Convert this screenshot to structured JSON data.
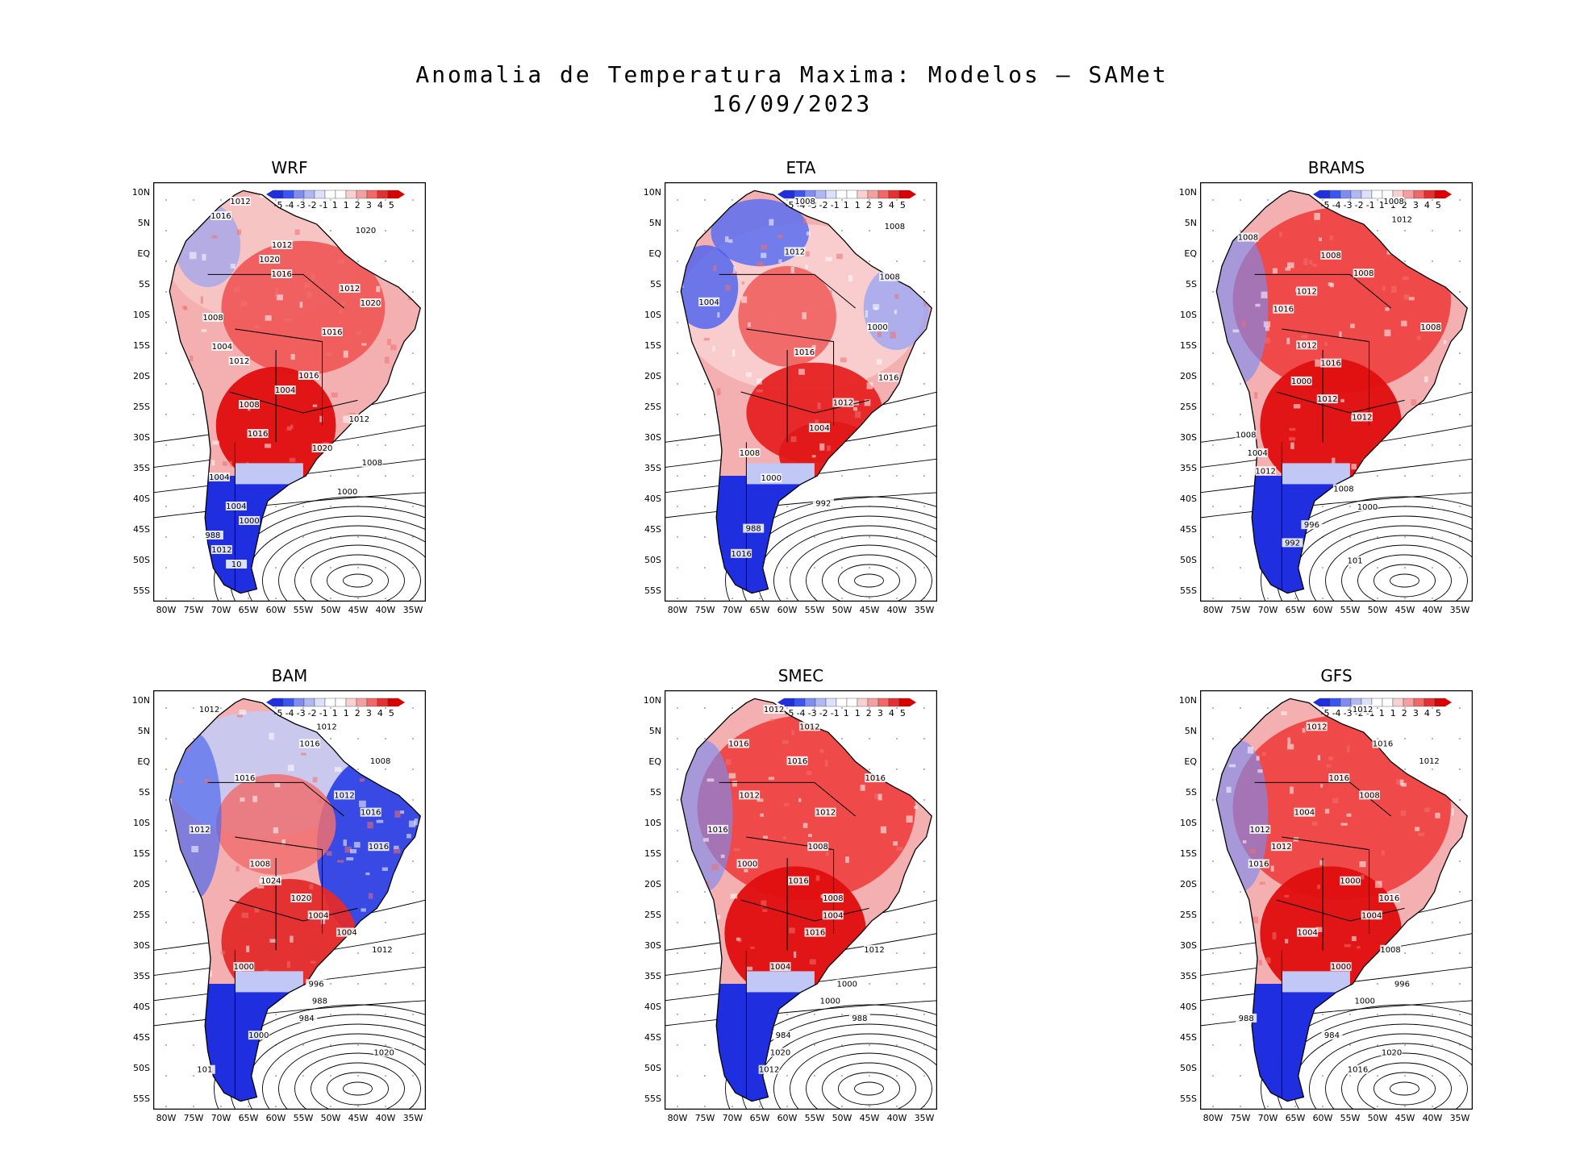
{
  "title_line1": "Anomalia de Temperatura Maxima: Modelos — SAMet",
  "title_line2": "16/09/2023",
  "colorbar": {
    "labels": [
      "-5",
      "-4",
      "-3",
      "-2",
      "-1",
      "1",
      "1",
      "2",
      "3",
      "4",
      "5"
    ],
    "colors": [
      "#1f2fe0",
      "#3a55f0",
      "#7f8cf0",
      "#b0b8f4",
      "#dde0fa",
      "#ffffff",
      "#ffffff",
      "#f9d0d0",
      "#f5a0a0",
      "#f06868",
      "#e43030",
      "#d80000"
    ]
  },
  "lat_ticks": [
    "10N",
    "5N",
    "EQ",
    "5S",
    "10S",
    "15S",
    "20S",
    "25S",
    "30S",
    "35S",
    "40S",
    "45S",
    "50S",
    "55S"
  ],
  "lon_ticks": [
    "80W",
    "75W",
    "70W",
    "65W",
    "60W",
    "55W",
    "50W",
    "45W",
    "40W",
    "35W"
  ],
  "panels": [
    {
      "name": "WRF",
      "labels": [
        "1012",
        "1016",
        "1020",
        "1012",
        "1020",
        "1016",
        "1012",
        "1020",
        "1008",
        "1016",
        "1004",
        "1012",
        "1016",
        "1004",
        "1008",
        "1012",
        "1016",
        "1020",
        "1008",
        "1004",
        "1000",
        "1004",
        "1000",
        "988",
        "1012",
        "10"
      ],
      "style": "mixed-red"
    },
    {
      "name": "ETA",
      "labels": [
        "1008",
        "1008",
        "1012",
        "1008",
        "1004",
        "1000",
        "1016",
        "1016",
        "1012",
        "1004",
        "1008",
        "1000",
        "992",
        "988",
        "1016"
      ],
      "style": "eta"
    },
    {
      "name": "BRAMS",
      "labels": [
        "1008",
        "1012",
        "1008",
        "1008",
        "1008",
        "1012",
        "1016",
        "1008",
        "1012",
        "1016",
        "1000",
        "1012",
        "1012",
        "1008",
        "1004",
        "1012",
        "1008",
        "1000",
        "996",
        "992",
        "101"
      ],
      "style": "strong-red"
    },
    {
      "name": "BAM",
      "labels": [
        "1012",
        "1012",
        "1016",
        "1008",
        "1016",
        "1012",
        "1016",
        "1012",
        "1016",
        "1008",
        "1024",
        "1020",
        "1004",
        "1004",
        "1012",
        "1000",
        "996",
        "988",
        "984",
        "1000",
        "1020",
        "101"
      ],
      "style": "bam"
    },
    {
      "name": "SMEC",
      "labels": [
        "1012",
        "1012",
        "1016",
        "1016",
        "1016",
        "1012",
        "1012",
        "1016",
        "1008",
        "1000",
        "1016",
        "1008",
        "1004",
        "1016",
        "1012",
        "1004",
        "1000",
        "1000",
        "988",
        "984",
        "1020",
        "1012"
      ],
      "style": "strong-red"
    },
    {
      "name": "GFS",
      "labels": [
        "1012",
        "1012",
        "1016",
        "1012",
        "1016",
        "1008",
        "1004",
        "1012",
        "1012",
        "1016",
        "1000",
        "1016",
        "1004",
        "1004",
        "1008",
        "1000",
        "996",
        "1000",
        "988",
        "984",
        "1020",
        "1016"
      ],
      "style": "strong-red"
    }
  ]
}
